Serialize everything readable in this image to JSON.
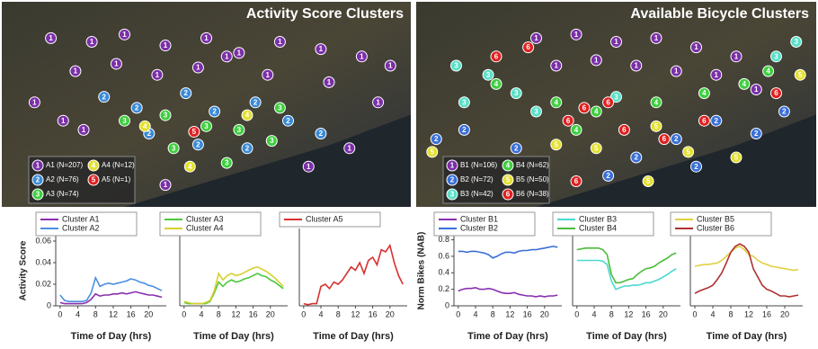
{
  "chart_data": [
    {
      "type": "map",
      "title": "Activity Score Clusters",
      "legend": [
        {
          "name": "A1 (N=207)",
          "label": "1",
          "color": "#7b2fa8"
        },
        {
          "name": "A2 (N=76)",
          "label": "2",
          "color": "#3a8ad8"
        },
        {
          "name": "A3 (N=74)",
          "label": "3",
          "color": "#3fcf3f"
        },
        {
          "name": "A4 (N=12)",
          "label": "4",
          "color": "#e4e030"
        },
        {
          "name": "A5 (N=1)",
          "label": "5",
          "color": "#e02020"
        }
      ],
      "points": {
        "x": [
          12,
          22,
          30,
          40,
          50,
          58,
          68,
          78,
          88,
          95,
          18,
          28,
          38,
          48,
          65,
          80,
          8,
          15,
          92,
          85,
          75,
          40,
          20,
          55,
          25,
          33,
          45,
          52,
          62,
          70,
          78,
          60,
          48,
          36,
          30,
          40,
          50,
          58,
          66,
          55,
          42,
          68,
          35,
          60,
          46,
          47
        ],
        "y": [
          10,
          12,
          8,
          14,
          10,
          18,
          12,
          16,
          20,
          25,
          28,
          24,
          30,
          26,
          30,
          34,
          45,
          55,
          45,
          70,
          80,
          90,
          60,
          20,
          42,
          48,
          40,
          50,
          45,
          55,
          62,
          70,
          68,
          62,
          55,
          52,
          58,
          60,
          66,
          78,
          70,
          48,
          58,
          52,
          80,
          61
        ],
        "cluster": [
          0,
          0,
          0,
          0,
          0,
          0,
          0,
          0,
          0,
          0,
          0,
          0,
          0,
          0,
          0,
          0,
          0,
          0,
          0,
          0,
          0,
          0,
          0,
          0,
          1,
          1,
          1,
          1,
          1,
          1,
          1,
          1,
          1,
          1,
          2,
          2,
          2,
          2,
          2,
          2,
          2,
          2,
          3,
          3,
          3,
          4
        ]
      }
    },
    {
      "type": "map",
      "title": "Available Bicycle Clusters",
      "legend": [
        {
          "name": "B1 (N=106)",
          "label": "1",
          "color": "#7b2fa8"
        },
        {
          "name": "B2 (N=72)",
          "label": "2",
          "color": "#3a6fd8"
        },
        {
          "name": "B3 (N=42)",
          "label": "3",
          "color": "#5ae0c8"
        },
        {
          "name": "B4 (N=62)",
          "label": "4",
          "color": "#3fcf3f"
        },
        {
          "name": "B5 (N=50)",
          "label": "5",
          "color": "#e4e030"
        },
        {
          "name": "B6 (N=38)",
          "label": "6",
          "color": "#e02020"
        }
      ],
      "points": {
        "x": [
          30,
          40,
          50,
          60,
          70,
          80,
          45,
          55,
          65,
          75,
          85,
          35,
          10,
          18,
          25,
          12,
          30,
          90,
          95,
          50,
          20,
          35,
          45,
          60,
          72,
          82,
          88,
          40,
          5,
          12,
          25,
          55,
          65,
          75,
          85,
          48,
          70,
          92,
          4,
          35,
          45,
          60,
          68,
          80,
          58,
          96,
          38,
          42,
          48,
          52,
          62,
          20,
          72,
          28,
          90,
          40
        ],
        "y": [
          10,
          8,
          12,
          10,
          15,
          20,
          22,
          25,
          28,
          30,
          38,
          25,
          25,
          30,
          40,
          45,
          50,
          20,
          12,
          42,
          35,
          45,
          50,
          45,
          40,
          35,
          28,
          60,
          65,
          60,
          70,
          75,
          65,
          55,
          62,
          85,
          80,
          50,
          72,
          68,
          70,
          58,
          72,
          75,
          88,
          30,
          55,
          48,
          45,
          60,
          65,
          20,
          55,
          15,
          40,
          88
        ],
        "cluster": [
          0,
          0,
          0,
          0,
          0,
          0,
          0,
          0,
          0,
          0,
          0,
          0,
          2,
          2,
          2,
          2,
          2,
          2,
          2,
          2,
          3,
          3,
          3,
          3,
          3,
          3,
          3,
          3,
          1,
          1,
          1,
          1,
          1,
          1,
          1,
          1,
          1,
          1,
          4,
          4,
          4,
          4,
          4,
          4,
          4,
          4,
          5,
          5,
          5,
          5,
          5,
          5,
          5,
          5,
          5,
          5
        ]
      }
    },
    {
      "type": "line",
      "ylabel": "Activity Score",
      "xlabel": "Time of Day (hrs)",
      "x": [
        0,
        1,
        2,
        3,
        4,
        5,
        6,
        7,
        8,
        9,
        10,
        11,
        12,
        13,
        14,
        15,
        16,
        17,
        18,
        19,
        20,
        21,
        22,
        23
      ],
      "xlim": [
        -1,
        24
      ],
      "xticks": [
        0,
        4,
        8,
        12,
        16,
        20
      ],
      "ylim": [
        0,
        0.065
      ],
      "yticks": [
        0,
        0.02,
        0.04,
        0.06
      ],
      "series": [
        {
          "name": "Cluster A1",
          "color": "#8a2fb0",
          "values": [
            0.003,
            0.002,
            0.002,
            0.002,
            0.002,
            0.002,
            0.003,
            0.006,
            0.011,
            0.009,
            0.01,
            0.01,
            0.011,
            0.011,
            0.012,
            0.011,
            0.012,
            0.013,
            0.012,
            0.011,
            0.01,
            0.01,
            0.009,
            0.008
          ]
        },
        {
          "name": "Cluster A2",
          "color": "#4a90e2",
          "values": [
            0.01,
            0.005,
            0.004,
            0.004,
            0.004,
            0.004,
            0.005,
            0.012,
            0.026,
            0.018,
            0.02,
            0.021,
            0.02,
            0.021,
            0.022,
            0.023,
            0.025,
            0.024,
            0.022,
            0.021,
            0.019,
            0.018,
            0.016,
            0.014
          ]
        }
      ]
    },
    {
      "type": "line",
      "xlabel": "Time of Day (hrs)",
      "x": [
        0,
        1,
        2,
        3,
        4,
        5,
        6,
        7,
        8,
        9,
        10,
        11,
        12,
        13,
        14,
        15,
        16,
        17,
        18,
        19,
        20,
        21,
        22,
        23
      ],
      "xlim": [
        -1,
        24
      ],
      "xticks": [
        0,
        4,
        8,
        12,
        16,
        20
      ],
      "ylim": [
        0,
        0.065
      ],
      "series": [
        {
          "name": "Cluster A3",
          "color": "#4cc83c",
          "values": [
            0.003,
            0.002,
            0.002,
            0.002,
            0.002,
            0.002,
            0.004,
            0.012,
            0.022,
            0.018,
            0.022,
            0.024,
            0.022,
            0.023,
            0.025,
            0.026,
            0.028,
            0.03,
            0.028,
            0.027,
            0.024,
            0.022,
            0.019,
            0.016
          ]
        },
        {
          "name": "Cluster A4",
          "color": "#d8d030",
          "values": [
            0.004,
            0.003,
            0.002,
            0.002,
            0.002,
            0.003,
            0.005,
            0.014,
            0.03,
            0.024,
            0.028,
            0.03,
            0.028,
            0.029,
            0.031,
            0.033,
            0.035,
            0.036,
            0.034,
            0.032,
            0.029,
            0.026,
            0.022,
            0.018
          ]
        }
      ]
    },
    {
      "type": "line",
      "xlabel": "Time of Day (hrs)",
      "x": [
        0,
        1,
        2,
        3,
        4,
        5,
        6,
        7,
        8,
        9,
        10,
        11,
        12,
        13,
        14,
        15,
        16,
        17,
        18,
        19,
        20,
        21,
        22,
        23
      ],
      "xlim": [
        -1,
        24
      ],
      "xticks": [
        0,
        4,
        8,
        12,
        16,
        20
      ],
      "ylim": [
        0,
        0.065
      ],
      "series": [
        {
          "name": "Cluster A5",
          "color": "#d83030",
          "values": [
            0.002,
            0.001,
            0.002,
            0.002,
            0.018,
            0.02,
            0.016,
            0.022,
            0.02,
            0.024,
            0.03,
            0.036,
            0.033,
            0.04,
            0.03,
            0.042,
            0.045,
            0.038,
            0.052,
            0.05,
            0.056,
            0.04,
            0.028,
            0.02
          ]
        }
      ]
    },
    {
      "type": "line",
      "ylabel": "Norm Bikes (NAB)",
      "xlabel": "Time of Day (hrs)",
      "x": [
        0,
        1,
        2,
        3,
        4,
        5,
        6,
        7,
        8,
        9,
        10,
        11,
        12,
        13,
        14,
        15,
        16,
        17,
        18,
        19,
        20,
        21,
        22,
        23
      ],
      "xlim": [
        -1,
        24
      ],
      "xticks": [
        0,
        4,
        8,
        12,
        16,
        20
      ],
      "ylim": [
        0,
        0.85
      ],
      "yticks": [
        0,
        0.2,
        0.4,
        0.6,
        0.8
      ],
      "series": [
        {
          "name": "Cluster B1",
          "color": "#8a2fb0",
          "values": [
            0.18,
            0.2,
            0.21,
            0.21,
            0.22,
            0.2,
            0.2,
            0.21,
            0.2,
            0.18,
            0.16,
            0.15,
            0.15,
            0.16,
            0.14,
            0.13,
            0.12,
            0.12,
            0.11,
            0.12,
            0.11,
            0.12,
            0.12,
            0.13
          ]
        },
        {
          "name": "Cluster B2",
          "color": "#3a6fd8",
          "values": [
            0.66,
            0.66,
            0.65,
            0.66,
            0.66,
            0.65,
            0.64,
            0.62,
            0.58,
            0.6,
            0.63,
            0.65,
            0.65,
            0.64,
            0.66,
            0.67,
            0.67,
            0.68,
            0.68,
            0.69,
            0.7,
            0.71,
            0.72,
            0.71
          ]
        }
      ]
    },
    {
      "type": "line",
      "xlabel": "Time of Day (hrs)",
      "x": [
        0,
        1,
        2,
        3,
        4,
        5,
        6,
        7,
        8,
        9,
        10,
        11,
        12,
        13,
        14,
        15,
        16,
        17,
        18,
        19,
        20,
        21,
        22,
        23
      ],
      "xlim": [
        -1,
        24
      ],
      "xticks": [
        0,
        4,
        8,
        12,
        16,
        20
      ],
      "ylim": [
        0,
        0.85
      ],
      "series": [
        {
          "name": "Cluster B3",
          "color": "#4ad8d0",
          "values": [
            0.55,
            0.55,
            0.55,
            0.55,
            0.55,
            0.55,
            0.54,
            0.5,
            0.3,
            0.2,
            0.22,
            0.24,
            0.24,
            0.25,
            0.25,
            0.26,
            0.28,
            0.28,
            0.3,
            0.32,
            0.35,
            0.38,
            0.42,
            0.45
          ]
        },
        {
          "name": "Cluster B4",
          "color": "#4cbc3c",
          "values": [
            0.68,
            0.69,
            0.7,
            0.7,
            0.7,
            0.7,
            0.68,
            0.62,
            0.38,
            0.28,
            0.28,
            0.3,
            0.32,
            0.33,
            0.38,
            0.42,
            0.45,
            0.46,
            0.48,
            0.52,
            0.55,
            0.58,
            0.62,
            0.64
          ]
        }
      ]
    },
    {
      "type": "line",
      "xlabel": "Time of Day (hrs)",
      "x": [
        0,
        1,
        2,
        3,
        4,
        5,
        6,
        7,
        8,
        9,
        10,
        11,
        12,
        13,
        14,
        15,
        16,
        17,
        18,
        19,
        20,
        21,
        22,
        23
      ],
      "xlim": [
        -1,
        24
      ],
      "xticks": [
        0,
        4,
        8,
        12,
        16,
        20
      ],
      "ylim": [
        0,
        0.85
      ],
      "series": [
        {
          "name": "Cluster B5",
          "color": "#e0d040",
          "values": [
            0.48,
            0.49,
            0.5,
            0.5,
            0.51,
            0.52,
            0.55,
            0.6,
            0.65,
            0.7,
            0.72,
            0.68,
            0.62,
            0.6,
            0.55,
            0.52,
            0.5,
            0.48,
            0.47,
            0.46,
            0.45,
            0.44,
            0.43,
            0.44
          ]
        },
        {
          "name": "Cluster B6",
          "color": "#b03030",
          "values": [
            0.15,
            0.18,
            0.2,
            0.22,
            0.25,
            0.32,
            0.4,
            0.52,
            0.65,
            0.72,
            0.75,
            0.72,
            0.65,
            0.45,
            0.35,
            0.25,
            0.2,
            0.18,
            0.15,
            0.12,
            0.12,
            0.11,
            0.12,
            0.13
          ]
        }
      ]
    }
  ]
}
